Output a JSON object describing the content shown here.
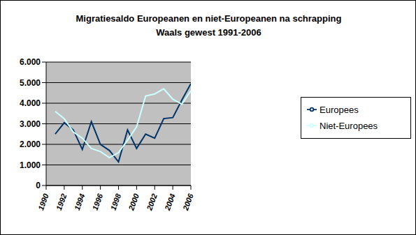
{
  "chart_data": {
    "type": "line",
    "title": "Migratiesaldo Europeanen en niet-Europeanen na schrapping",
    "subtitle": "Waals gewest 1991-2006",
    "x": [
      1991,
      1992,
      1993,
      1994,
      1995,
      1996,
      1997,
      1998,
      1999,
      2000,
      2001,
      2002,
      2003,
      2004,
      2005,
      2006
    ],
    "series": [
      {
        "name": "Europees",
        "color": "#003366",
        "values": [
          2500,
          3050,
          2700,
          1750,
          3100,
          2000,
          1700,
          1150,
          2700,
          1800,
          2500,
          2300,
          3250,
          3300,
          4150,
          4950
        ]
      },
      {
        "name": "Niet-Europees",
        "color": "#ccffff",
        "values": [
          3600,
          3250,
          2600,
          2300,
          1800,
          1650,
          1350,
          1600,
          2200,
          2850,
          4350,
          4450,
          4700,
          4200,
          3950,
          4600
        ]
      }
    ],
    "xlim": [
      1990,
      2006
    ],
    "xticks": [
      1990,
      1992,
      1994,
      1996,
      1998,
      2000,
      2002,
      2004,
      2006
    ],
    "ylim": [
      0,
      6000
    ],
    "yticks": [
      0,
      {
        "value": 1000,
        "label": "1.000"
      },
      {
        "value": 2000,
        "label": "2.000"
      },
      {
        "value": 3000,
        "label": "3.000"
      },
      {
        "value": 4000,
        "label": "4.000"
      },
      {
        "value": 5000,
        "label": "5.000"
      },
      {
        "value": 6000,
        "label": "6.000"
      }
    ],
    "grid": true,
    "legend": "right"
  }
}
